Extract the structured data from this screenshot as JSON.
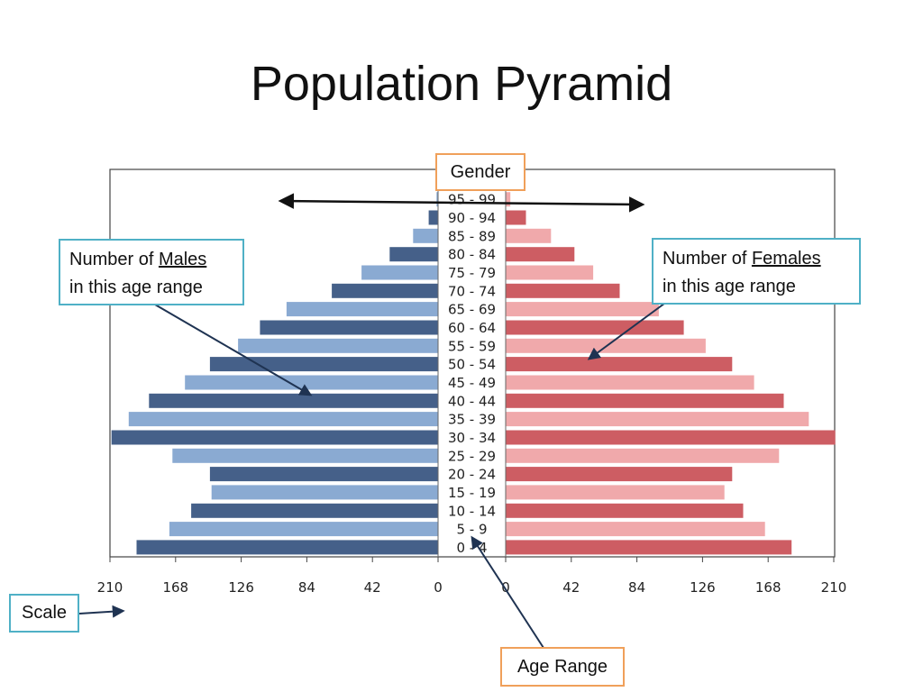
{
  "slide": {
    "title": "Population Pyramid"
  },
  "callouts": {
    "gender": "Gender",
    "males": {
      "prefix": "Number of ",
      "word": "Males",
      "line2": "in this age range"
    },
    "females": {
      "prefix": "Number of ",
      "word": "Females",
      "line2": "in this age range"
    },
    "scale": "Scale",
    "age_range": "Age Range"
  },
  "colors": {
    "male_dark": "#456089",
    "male_light": "#8aaad2",
    "female_dark": "#cd5d63",
    "female_light": "#f0a9ab",
    "callout_orange": "#f0a05a",
    "callout_teal": "#4fb0c6",
    "arrow": "#1f3352"
  },
  "chart_data": {
    "type": "bar",
    "categories": [
      "0 - 4",
      "5 - 9",
      "10 - 14",
      "15 - 19",
      "20 - 24",
      "25 - 29",
      "30 - 34",
      "35 - 39",
      "40 - 44",
      "45 - 49",
      "50 - 54",
      "55 - 59",
      "60 - 64",
      "65 - 69",
      "70 - 74",
      "75 - 79",
      "80 - 84",
      "85 - 89",
      "90 - 94",
      "95 - 99"
    ],
    "series": [
      {
        "name": "Males",
        "values": [
          193,
          172,
          158,
          145,
          146,
          170,
          209,
          198,
          185,
          162,
          146,
          128,
          114,
          97,
          68,
          49,
          31,
          16,
          6,
          1
        ]
      },
      {
        "name": "Females",
        "values": [
          183,
          166,
          152,
          140,
          145,
          175,
          211,
          194,
          178,
          159,
          145,
          128,
          114,
          98,
          73,
          56,
          44,
          29,
          13,
          3
        ]
      }
    ],
    "ticks_left": [
      "210",
      "168",
      "126",
      "84",
      "42",
      "0"
    ],
    "ticks_right": [
      "0",
      "42",
      "84",
      "126",
      "168",
      "210"
    ],
    "xlim": [
      0,
      210
    ]
  }
}
